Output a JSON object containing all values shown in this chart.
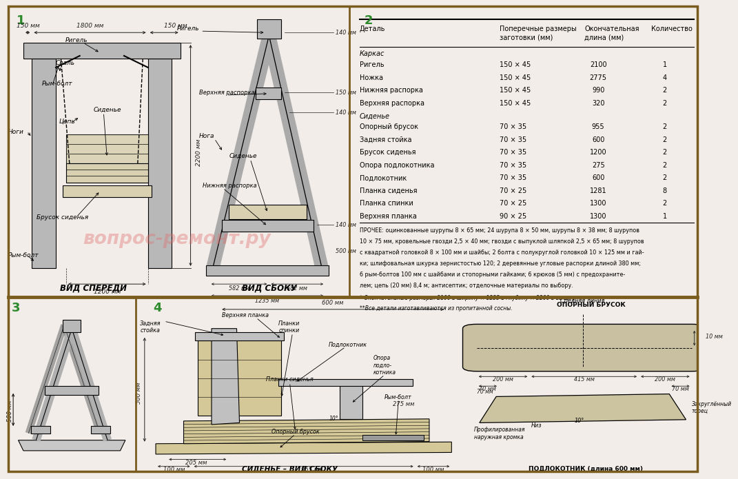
{
  "bg_color": "#f2ede8",
  "border_color": "#7a5c1e",
  "text_color": "#000000",
  "green_color": "#2d8a2d",
  "watermark_text": "вопрос-ремонт.ру",
  "view1_title": "ВИД СПЕРЕДИ",
  "view2_title": "ВИД СБОКУ",
  "view4_title": "СИДЕНЬЕ – ВИД СБОКУ",
  "col_headers": [
    "Деталь",
    "Поперечные размеры\nзаготовки (мм)",
    "Окончательная\nдлина (мм)",
    "Количество"
  ],
  "section_karkac": "Каркас",
  "section_sidenie": "Сиденье",
  "table_rows_karkac": [
    [
      "Ригель",
      "150 × 45",
      "2100",
      "1"
    ],
    [
      "Ножка",
      "150 × 45",
      "2775",
      "4"
    ],
    [
      "Нижняя распорка",
      "150 × 45",
      "990",
      "2"
    ],
    [
      "Верхняя распорка",
      "150 × 45",
      "320",
      "2"
    ]
  ],
  "table_rows_sidenie": [
    [
      "Опорный брусок",
      "70 × 35",
      "955",
      "2"
    ],
    [
      "Задняя стойка",
      "70 × 35",
      "600",
      "2"
    ],
    [
      "Брусок сиденья",
      "70 × 35",
      "1200",
      "2"
    ],
    [
      "Опора подлокотника",
      "70 × 35",
      "275",
      "2"
    ],
    [
      "Подлокотник",
      "70 × 35",
      "600",
      "2"
    ],
    [
      "Планка сиденья",
      "70 × 25",
      "1281",
      "8"
    ],
    [
      "Планка спинки",
      "70 × 25",
      "1300",
      "2"
    ],
    [
      "Верхняя планка",
      "90 × 25",
      "1300",
      "1"
    ]
  ],
  "notes_line1": "ПРОЧЕЕ: оцинкованные шурупы 8 × 65 мм; 24 шурупа 8 × 50 мм, шурупы 8 × 38 мм; 8 шурупов",
  "notes_line2": "10 × 75 мм, кровельные гвозди 2,5 × 40 мм; гвозди с выпуклой шляпкой 2,5 × 65 мм; 8 шурупов",
  "notes_line3": "с квадратной головкой 8 × 100 мм и шайбы; 2 болта с полукруглой головкой 10 × 125 мм и гай-",
  "notes_line4": "ки; шлифовальная шкурка зернистостью 120; 2 деревянные угловые распорки длиной 380 мм;",
  "notes_line5": "6 рым-болтов 100 мм с шайбами и стопорными гайками; 6 крюков (5 мм) с предохраните-",
  "notes_line6": "лем; цепь (20 мм) 8,4 м; антисептик; отделочные материалы по выбору.",
  "footnote1": "* Окончательные размеры: 2100 в ширину × 1235 в глубину × 2200 в высоту.",
  "footnote2": "**Все детали изготавливаются из пропитанной сосны."
}
